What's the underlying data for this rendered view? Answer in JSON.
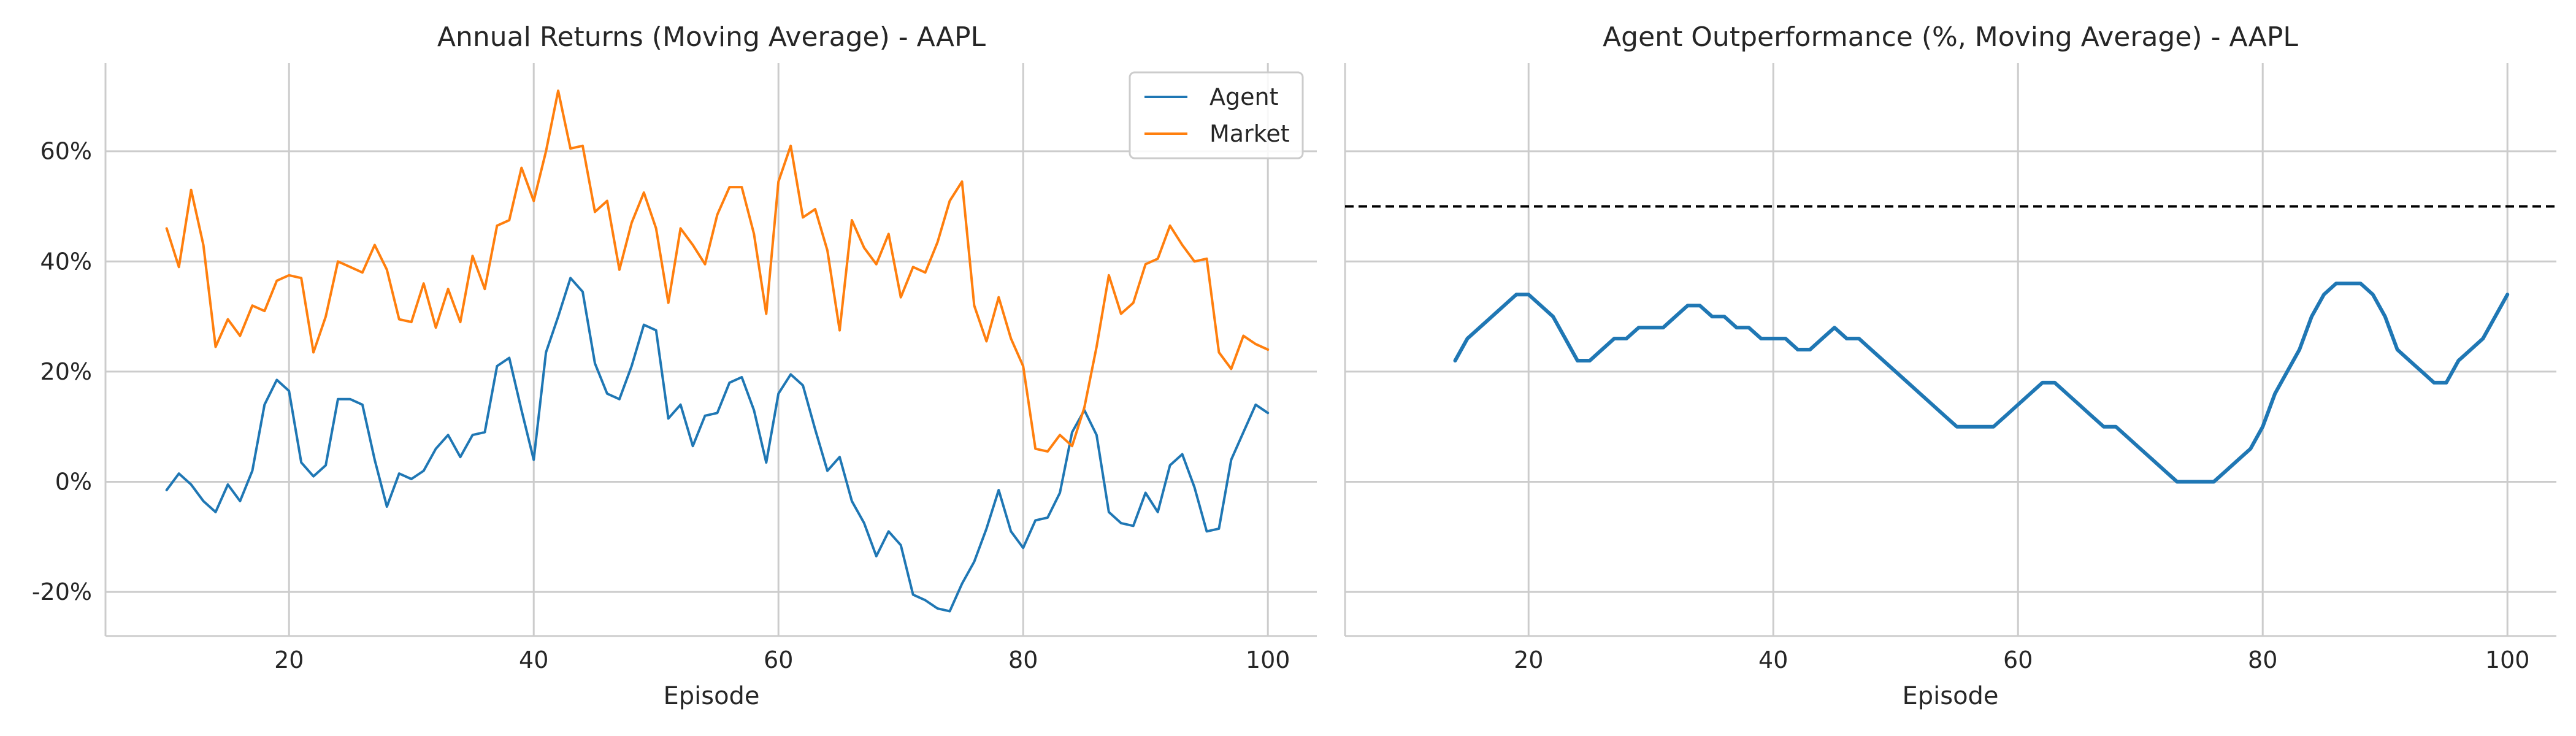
{
  "chart_data": [
    {
      "type": "line",
      "title": "Annual Returns (Moving Average) - AAPL",
      "xlabel": "Episode",
      "ylabel": "",
      "xlim": [
        5,
        104
      ],
      "ylim": [
        -0.28,
        0.76
      ],
      "xticks": [
        20,
        40,
        60,
        80,
        100
      ],
      "yticks": [
        -0.2,
        0,
        0.2,
        0.4,
        0.6
      ],
      "yticklabels": [
        "-20%",
        "0%",
        "20%",
        "40%",
        "60%"
      ],
      "legend_position": "top-right",
      "grid": true,
      "series": [
        {
          "name": "Agent",
          "color": "#1f77b4",
          "x": [
            10,
            11,
            12,
            13,
            14,
            15,
            16,
            17,
            18,
            19,
            20,
            21,
            22,
            23,
            24,
            25,
            26,
            27,
            28,
            29,
            30,
            31,
            32,
            33,
            34,
            35,
            36,
            37,
            38,
            39,
            40,
            41,
            42,
            43,
            44,
            45,
            46,
            47,
            48,
            49,
            50,
            51,
            52,
            53,
            54,
            55,
            56,
            57,
            58,
            59,
            60,
            61,
            62,
            63,
            64,
            65,
            66,
            67,
            68,
            69,
            70,
            71,
            72,
            73,
            74,
            75,
            76,
            77,
            78,
            79,
            80,
            81,
            82,
            83,
            84,
            85,
            86,
            87,
            88,
            89,
            90,
            91,
            92,
            93,
            94,
            95,
            96,
            97,
            98,
            99,
            100
          ],
          "values": [
            -0.015,
            0.015,
            -0.005,
            -0.035,
            -0.055,
            -0.005,
            -0.035,
            0.02,
            0.14,
            0.185,
            0.165,
            0.035,
            0.01,
            0.03,
            0.15,
            0.15,
            0.14,
            0.04,
            -0.045,
            0.015,
            0.005,
            0.02,
            0.06,
            0.085,
            0.045,
            0.085,
            0.09,
            0.21,
            0.225,
            0.13,
            0.04,
            0.235,
            0.3,
            0.37,
            0.345,
            0.215,
            0.16,
            0.15,
            0.21,
            0.285,
            0.275,
            0.115,
            0.14,
            0.065,
            0.12,
            0.125,
            0.18,
            0.19,
            0.13,
            0.035,
            0.16,
            0.195,
            0.175,
            0.095,
            0.02,
            0.045,
            -0.035,
            -0.075,
            -0.135,
            -0.09,
            -0.115,
            -0.205,
            -0.215,
            -0.23,
            -0.235,
            -0.185,
            -0.145,
            -0.085,
            -0.015,
            -0.09,
            -0.12,
            -0.07,
            -0.065,
            -0.02,
            0.09,
            0.13,
            0.085,
            -0.055,
            -0.075,
            -0.08,
            -0.02,
            -0.055,
            0.03,
            0.05,
            -0.01,
            -0.09,
            -0.085,
            0.04,
            0.09,
            0.14,
            0.125
          ]
        },
        {
          "name": "Market",
          "color": "#ff7f0e",
          "x": [
            10,
            11,
            12,
            13,
            14,
            15,
            16,
            17,
            18,
            19,
            20,
            21,
            22,
            23,
            24,
            25,
            26,
            27,
            28,
            29,
            30,
            31,
            32,
            33,
            34,
            35,
            36,
            37,
            38,
            39,
            40,
            41,
            42,
            43,
            44,
            45,
            46,
            47,
            48,
            49,
            50,
            51,
            52,
            53,
            54,
            55,
            56,
            57,
            58,
            59,
            60,
            61,
            62,
            63,
            64,
            65,
            66,
            67,
            68,
            69,
            70,
            71,
            72,
            73,
            74,
            75,
            76,
            77,
            78,
            79,
            80,
            81,
            82,
            83,
            84,
            85,
            86,
            87,
            88,
            89,
            90,
            91,
            92,
            93,
            94,
            95,
            96,
            97,
            98,
            99,
            100
          ],
          "values": [
            0.46,
            0.39,
            0.53,
            0.43,
            0.245,
            0.295,
            0.265,
            0.32,
            0.31,
            0.365,
            0.375,
            0.37,
            0.235,
            0.3,
            0.4,
            0.39,
            0.38,
            0.43,
            0.385,
            0.295,
            0.29,
            0.36,
            0.28,
            0.35,
            0.29,
            0.41,
            0.35,
            0.465,
            0.475,
            0.57,
            0.51,
            0.6,
            0.71,
            0.605,
            0.61,
            0.49,
            0.51,
            0.385,
            0.47,
            0.525,
            0.46,
            0.325,
            0.46,
            0.43,
            0.395,
            0.485,
            0.535,
            0.535,
            0.45,
            0.305,
            0.545,
            0.61,
            0.48,
            0.495,
            0.42,
            0.275,
            0.475,
            0.425,
            0.395,
            0.45,
            0.335,
            0.39,
            0.38,
            0.435,
            0.51,
            0.545,
            0.32,
            0.255,
            0.335,
            0.26,
            0.21,
            0.06,
            0.055,
            0.085,
            0.065,
            0.135,
            0.245,
            0.375,
            0.305,
            0.325,
            0.395,
            0.405,
            0.465,
            0.43,
            0.4,
            0.405,
            0.235,
            0.205,
            0.265,
            0.25,
            0.24
          ]
        }
      ]
    },
    {
      "type": "line",
      "title": "Agent Outperformance (%, Moving Average) - AAPL",
      "xlabel": "Episode",
      "ylabel": "",
      "xlim": [
        5,
        104
      ],
      "ylim": [
        -0.28,
        0.76
      ],
      "xticks": [
        20,
        40,
        60,
        80,
        100
      ],
      "grid": true,
      "reference_line": {
        "y": 0.5,
        "style": "dashed",
        "color": "#000000"
      },
      "series": [
        {
          "color": "#1f77b4",
          "x": [
            14,
            15,
            16,
            17,
            18,
            19,
            20,
            21,
            22,
            23,
            24,
            25,
            26,
            27,
            28,
            29,
            30,
            31,
            32,
            33,
            34,
            35,
            36,
            37,
            38,
            39,
            40,
            41,
            42,
            43,
            44,
            45,
            46,
            47,
            48,
            49,
            50,
            51,
            52,
            53,
            54,
            55,
            56,
            57,
            58,
            59,
            60,
            61,
            62,
            63,
            64,
            65,
            66,
            67,
            68,
            69,
            70,
            71,
            72,
            73,
            74,
            75,
            76,
            77,
            78,
            79,
            80,
            81,
            82,
            83,
            84,
            85,
            86,
            87,
            88,
            89,
            90,
            91,
            92,
            93,
            94,
            95,
            96,
            97,
            98,
            99,
            100
          ],
          "values": [
            0.22,
            0.26,
            0.28,
            0.3,
            0.32,
            0.34,
            0.34,
            0.32,
            0.3,
            0.26,
            0.22,
            0.22,
            0.24,
            0.26,
            0.26,
            0.28,
            0.28,
            0.28,
            0.3,
            0.32,
            0.32,
            0.3,
            0.3,
            0.28,
            0.28,
            0.26,
            0.26,
            0.26,
            0.24,
            0.24,
            0.26,
            0.28,
            0.26,
            0.26,
            0.24,
            0.22,
            0.2,
            0.18,
            0.16,
            0.14,
            0.12,
            0.1,
            0.1,
            0.1,
            0.1,
            0.12,
            0.14,
            0.16,
            0.18,
            0.18,
            0.16,
            0.14,
            0.12,
            0.1,
            0.1,
            0.08,
            0.06,
            0.04,
            0.02,
            0.0,
            0.0,
            0.0,
            0.0,
            0.02,
            0.04,
            0.06,
            0.1,
            0.16,
            0.2,
            0.24,
            0.3,
            0.34,
            0.36,
            0.36,
            0.36,
            0.34,
            0.3,
            0.24,
            0.22,
            0.2,
            0.18,
            0.18,
            0.22,
            0.24,
            0.26,
            0.3,
            0.34
          ]
        }
      ]
    }
  ]
}
